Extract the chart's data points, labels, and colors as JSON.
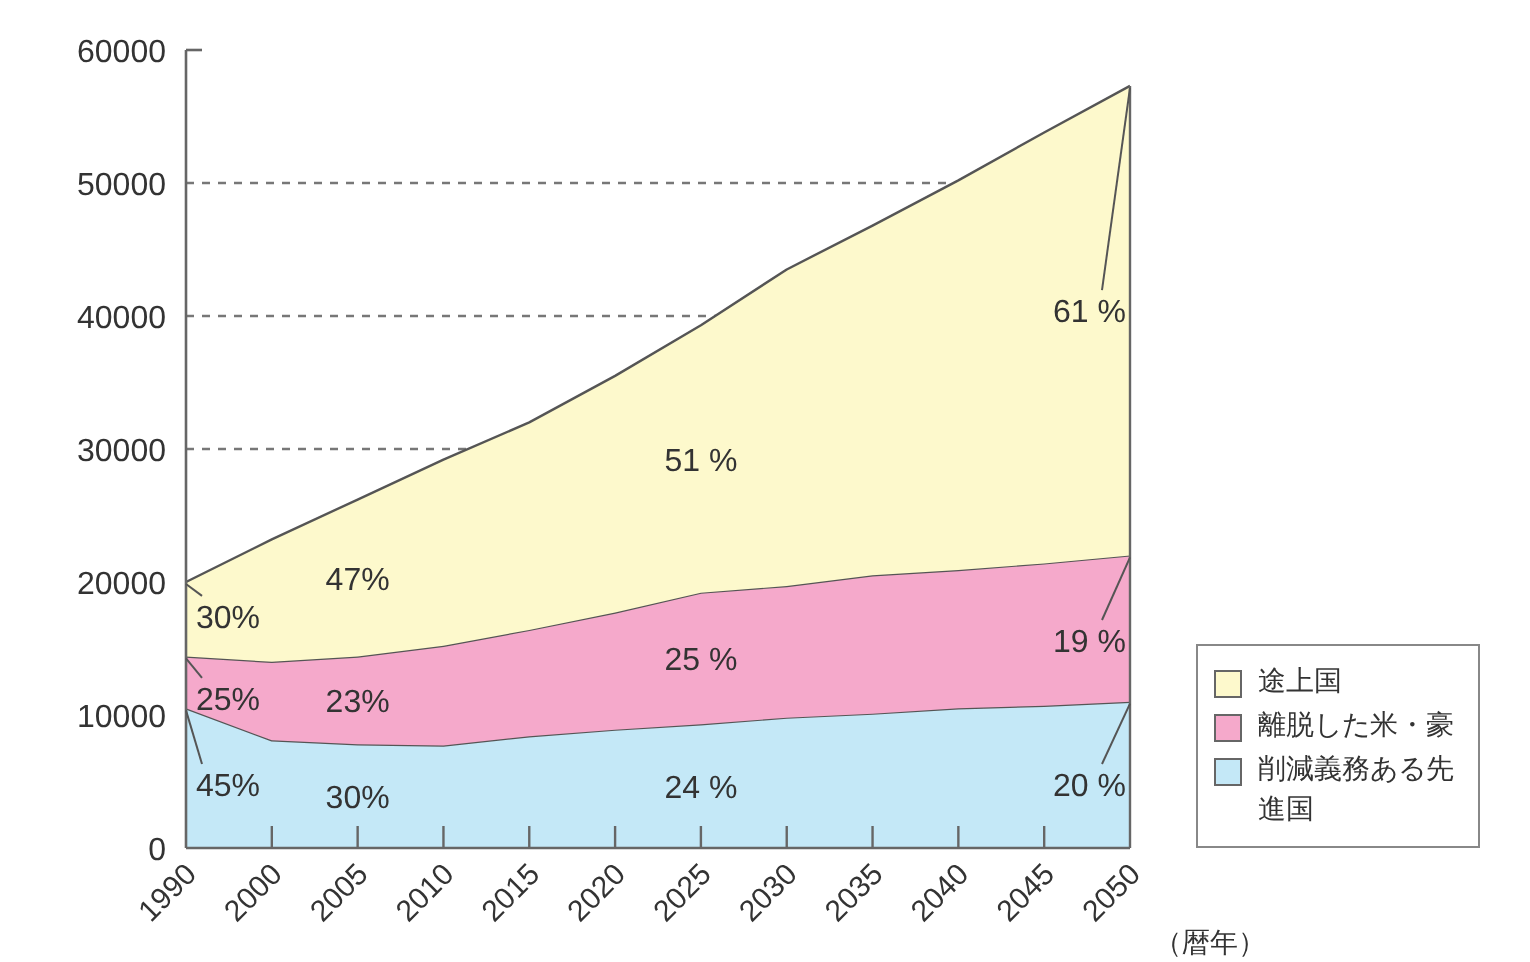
{
  "chart_data": {
    "type": "area",
    "stacked": true,
    "categories": [
      "1990",
      "2000",
      "2005",
      "2010",
      "2015",
      "2020",
      "2025",
      "2030",
      "2035",
      "2040",
      "2045",
      "2050"
    ],
    "xlabel": "（暦年）",
    "series": [
      {
        "name": "削減義務ある先進国",
        "color": "#c4e8f7",
        "values": [
          10500,
          8100,
          7800,
          7700,
          8400,
          8900,
          9300,
          9800,
          10100,
          10500,
          10700,
          11000
        ]
      },
      {
        "name": "離脱した米・豪",
        "color": "#f5a9cb",
        "values": [
          3900,
          5900,
          6600,
          7500,
          8000,
          8800,
          9900,
          9900,
          10400,
          10400,
          10700,
          11000
        ]
      },
      {
        "name": "途上国",
        "color": "#fdf9cc",
        "values": [
          5600,
          9200,
          11800,
          14000,
          15600,
          17800,
          20100,
          23800,
          26300,
          29300,
          32400,
          35300
        ]
      }
    ],
    "ylim": [
      0,
      60000
    ],
    "yticks": [
      0,
      10000,
      20000,
      30000,
      40000,
      50000,
      60000
    ],
    "grid": "y",
    "legend": "bottom right",
    "annotations": [
      {
        "text": "30%",
        "x": "1990",
        "y": 17450
      },
      {
        "text": "25%",
        "x": "1990",
        "y": 11280
      },
      {
        "text": "45%",
        "x": "1990",
        "y": 4810
      },
      "47%",
      "23%",
      "30%",
      "51 %",
      "25 %",
      "24 %",
      {
        "text": "61 %",
        "x": "2050",
        "y": 40450
      },
      {
        "text": "19 %",
        "x": "2050",
        "y": 15640
      },
      {
        "text": "20 %",
        "x": "2050",
        "y": 4810
      }
    ]
  }
}
